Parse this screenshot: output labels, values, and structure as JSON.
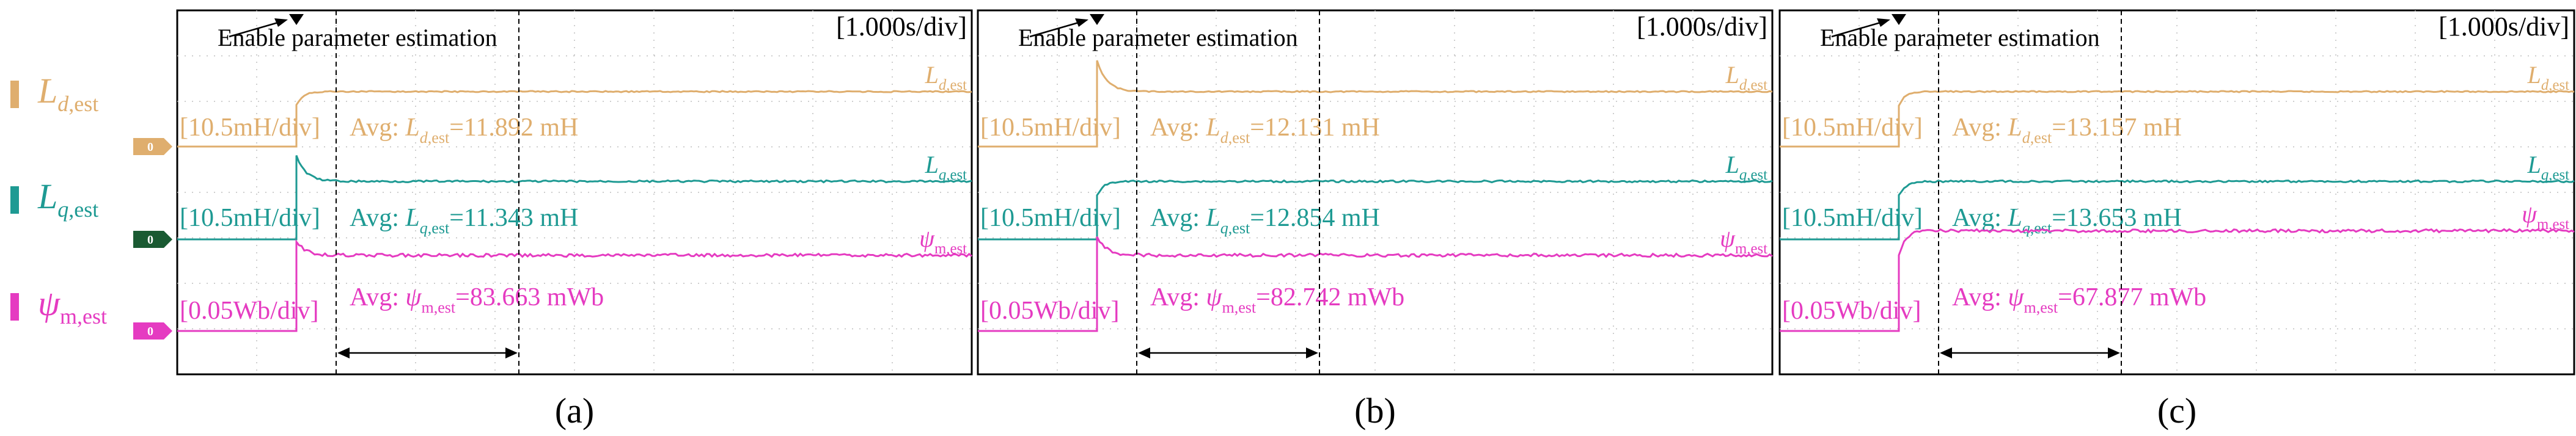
{
  "legend": [
    {
      "base": "L",
      "sub_italic": "d",
      "sub_rest": ",est",
      "color": "#DFAE6E"
    },
    {
      "base": "L",
      "sub_italic": "q",
      "sub_rest": ",est",
      "color": "#1E9A93"
    },
    {
      "base": "ψ",
      "sub_italic": "",
      "sub_rest": "m,est",
      "color": "#E53BC1"
    }
  ],
  "markers": [
    {
      "label": "0",
      "color": "#DFAE6E"
    },
    {
      "label": "0",
      "color": "#1A5A32"
    },
    {
      "label": "0",
      "color": "#E53BC1"
    }
  ],
  "colors": {
    "Ld": "#DFAE6E",
    "Lq": "#1E9A93",
    "psi": "#E53BC1",
    "frame": "#000000",
    "grid": "#BDBDBD"
  },
  "panels": [
    {
      "label": "(a)",
      "timescale": "[1.000s/div]",
      "annotation": "Enable parameter estimation",
      "scales": [
        "[10.5mH/div]",
        "[10.5mH/div]",
        "[0.05Wb/div]"
      ],
      "avg_prefix": "Avg: ",
      "avg": [
        {
          "sym": "L",
          "sub_italic": "d",
          "sub_rest": ",est",
          "text": "=11.892 mH"
        },
        {
          "sym": "L",
          "sub_italic": "q",
          "sub_rest": ",est",
          "text": "=11.343 mH"
        },
        {
          "sym": "ψ",
          "sub_italic": "",
          "sub_rest": "m,est",
          "text": "=83.663 mWb"
        }
      ],
      "trace_labels": [
        {
          "sym": "L",
          "sub_italic": "d",
          "sub_rest": ",est"
        },
        {
          "sym": "L",
          "sub_italic": "q",
          "sub_rest": ",est"
        },
        {
          "sym": "ψ",
          "sub_italic": "",
          "sub_rest": "m,est"
        }
      ]
    },
    {
      "label": "(b)",
      "timescale": "[1.000s/div]",
      "annotation": "Enable parameter estimation",
      "scales": [
        "[10.5mH/div]",
        "[10.5mH/div]",
        "[0.05Wb/div]"
      ],
      "avg_prefix": "Avg: ",
      "avg": [
        {
          "sym": "L",
          "sub_italic": "d",
          "sub_rest": ",est",
          "text": "=12.131 mH"
        },
        {
          "sym": "L",
          "sub_italic": "q",
          "sub_rest": ",est",
          "text": "=12.854 mH"
        },
        {
          "sym": "ψ",
          "sub_italic": "",
          "sub_rest": "m,est",
          "text": "=82.742 mWb"
        }
      ],
      "trace_labels": [
        {
          "sym": "L",
          "sub_italic": "d",
          "sub_rest": ",est"
        },
        {
          "sym": "L",
          "sub_italic": "q",
          "sub_rest": ",est"
        },
        {
          "sym": "ψ",
          "sub_italic": "",
          "sub_rest": "m,est"
        }
      ]
    },
    {
      "label": "(c)",
      "timescale": "[1.000s/div]",
      "annotation": "Enable parameter estimation",
      "scales": [
        "[10.5mH/div]",
        "[10.5mH/div]",
        "[0.05Wb/div]"
      ],
      "avg_prefix": "Avg: ",
      "avg": [
        {
          "sym": "L",
          "sub_italic": "d",
          "sub_rest": ",est",
          "text": "=13.157 mH"
        },
        {
          "sym": "L",
          "sub_italic": "q",
          "sub_rest": ",est",
          "text": "=13.653 mH"
        },
        {
          "sym": "ψ",
          "sub_italic": "",
          "sub_rest": "m,est",
          "text": "=67.877 mWb"
        }
      ],
      "trace_labels": [
        {
          "sym": "L",
          "sub_italic": "d",
          "sub_rest": ",est"
        },
        {
          "sym": "L",
          "sub_italic": "q",
          "sub_rest": ",est"
        },
        {
          "sym": "ψ",
          "sub_italic": "",
          "sub_rest": "m,est"
        }
      ]
    }
  ],
  "chart_data": [
    {
      "type": "line",
      "title": "(a)",
      "x_unit": "s",
      "x_range": [
        0,
        10
      ],
      "enable_time": 1.5,
      "averaging_window": [
        2.0,
        4.3
      ],
      "series": [
        {
          "name": "Ld,est",
          "unit": "mH",
          "before": 0,
          "after": 11.892,
          "overshoot": 0
        },
        {
          "name": "Lq,est",
          "unit": "mH",
          "before": 0,
          "after": 11.343,
          "overshoot": 5.0
        },
        {
          "name": "psi_m,est",
          "unit": "mWb",
          "before": 0,
          "after": 83.663,
          "overshoot": 15
        }
      ]
    },
    {
      "type": "line",
      "title": "(b)",
      "x_unit": "s",
      "x_range": [
        0,
        10
      ],
      "enable_time": 1.5,
      "averaging_window": [
        2.0,
        4.3
      ],
      "series": [
        {
          "name": "Ld,est",
          "unit": "mH",
          "before": 0,
          "after": 12.131,
          "overshoot": 7.0
        },
        {
          "name": "Lq,est",
          "unit": "mH",
          "before": 0,
          "after": 12.854,
          "overshoot": 0
        },
        {
          "name": "psi_m,est",
          "unit": "mWb",
          "before": 0,
          "after": 82.742,
          "overshoot": 20
        }
      ]
    },
    {
      "type": "line",
      "title": "(c)",
      "x_unit": "s",
      "x_range": [
        0,
        10
      ],
      "enable_time": 1.5,
      "averaging_window": [
        2.0,
        4.3
      ],
      "series": [
        {
          "name": "Ld,est",
          "unit": "mH",
          "before": 0,
          "after": 13.157,
          "overshoot": 0
        },
        {
          "name": "Lq,est",
          "unit": "mH",
          "before": 0,
          "after": 13.653,
          "overshoot": 0
        },
        {
          "name": "psi_m,est",
          "unit": "mWb",
          "before": 0,
          "after": 67.877,
          "overshoot": 0
        }
      ]
    }
  ]
}
